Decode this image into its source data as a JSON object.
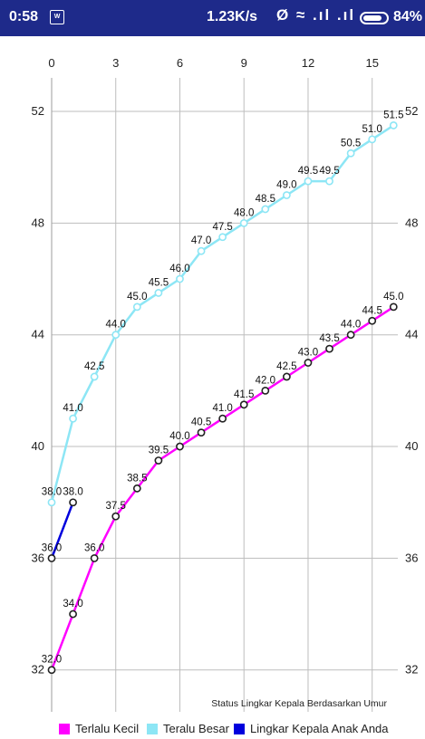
{
  "status_bar": {
    "time": "0:58",
    "app_icon_text": "W",
    "speed": "1.23K/s",
    "icons": "Ø ≈ .ıl .ıl",
    "battery_percent": "84%",
    "battery_level": 0.84
  },
  "chart_data": {
    "type": "line",
    "title": "Status Lingkar Kepala Berdasarkan Umur",
    "xlabel": "",
    "ylabel": "",
    "xlim": [
      0,
      16.2
    ],
    "ylim": [
      30.5,
      53.2
    ],
    "x_ticks": [
      0,
      3,
      6,
      9,
      12,
      15
    ],
    "y_ticks": [
      32,
      36,
      40,
      44,
      48,
      52
    ],
    "x_axis_position": "top",
    "grid": true,
    "legend_position": "bottom",
    "series": [
      {
        "name": "Terlalu Kecil",
        "color": "#ff00ff",
        "x": [
          0,
          1,
          2,
          3,
          4,
          5,
          6,
          7,
          8,
          9,
          10,
          11,
          12,
          13,
          14,
          15,
          16
        ],
        "y": [
          32.0,
          34.0,
          36.0,
          37.5,
          38.5,
          39.5,
          40.0,
          40.5,
          41.0,
          41.5,
          42.0,
          42.5,
          43.0,
          43.5,
          44.0,
          44.5,
          45.0
        ],
        "labels": [
          "32.0",
          "34.0",
          "36.0",
          "37.5",
          "38.5",
          "39.5",
          "40.0",
          "40.5",
          "41.0",
          "41.5",
          "42.0",
          "42.5",
          "43.0",
          "43.5",
          "44.0",
          "44.5",
          "45.0"
        ]
      },
      {
        "name": "Teralu Besar",
        "color": "#8de6f5",
        "x": [
          0,
          1,
          2,
          3,
          4,
          5,
          6,
          7,
          8,
          9,
          10,
          11,
          12,
          13,
          14,
          15,
          16
        ],
        "y": [
          38.0,
          41.0,
          42.5,
          44.0,
          45.0,
          45.5,
          46.0,
          47.0,
          47.5,
          48.0,
          48.5,
          49.0,
          49.5,
          49.5,
          50.5,
          51.0,
          51.5
        ],
        "labels": [
          "38.0",
          "41.0",
          "42.5",
          "44.0",
          "45.0",
          "45.5",
          "46.0",
          "47.0",
          "47.5",
          "48.0",
          "48.5",
          "49.0",
          "49.5",
          "49.5",
          "50.5",
          "51.0",
          "51.5"
        ]
      },
      {
        "name": "Lingkar Kepala Anak Anda",
        "color": "#0000dd",
        "x": [
          0,
          1
        ],
        "y": [
          36.0,
          38.0
        ],
        "labels": [
          "36.0",
          "38.0"
        ]
      }
    ]
  }
}
